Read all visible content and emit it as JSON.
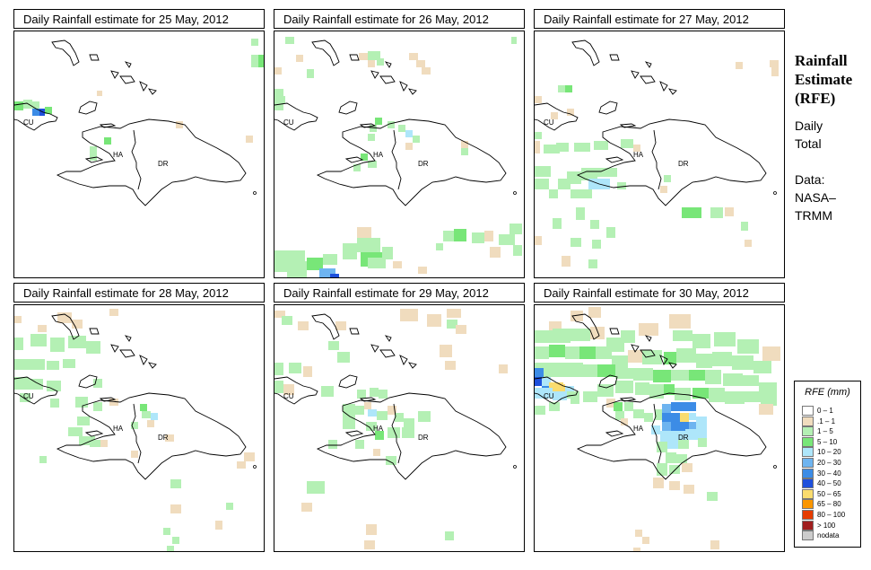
{
  "panels": [
    {
      "title": "Daily Rainfall estimate for  25 May, 2012",
      "labels": {
        "cu": "CU",
        "ha": "HA",
        "dr": "DR"
      }
    },
    {
      "title": "Daily Rainfall estimate for  26 May, 2012",
      "labels": {
        "cu": "CU",
        "ha": "HA",
        "dr": "DR"
      }
    },
    {
      "title": "Daily Rainfall estimate for  27 May, 2012",
      "labels": {
        "cu": "CU",
        "ha": "HA",
        "dr": "DR"
      }
    },
    {
      "title": "Daily Rainfall estimate for  28 May, 2012",
      "labels": {
        "cu": "CU",
        "ha": "HA",
        "dr": "DR"
      }
    },
    {
      "title": "Daily Rainfall estimate for  29 May, 2012",
      "labels": {
        "cu": "CU",
        "ha": "HA",
        "dr": "DR"
      }
    },
    {
      "title": "Daily Rainfall estimate for  30 May, 2012",
      "labels": {
        "cu": "CU",
        "ha": "HA",
        "dr": "DR"
      }
    }
  ],
  "side": {
    "title_lines": [
      "Rainfall",
      "Estimate",
      "(RFE)"
    ],
    "daily_lines": [
      "Daily",
      "Total"
    ],
    "data_lines": [
      "Data:",
      "NASA–",
      "TRMM"
    ]
  },
  "legend": {
    "title": "RFE (mm)",
    "items": [
      {
        "label": "0 – 1",
        "color": "#ffffff"
      },
      {
        "label": ".1 – 1",
        "color": "#f0dcbe"
      },
      {
        "label": "1 – 5",
        "color": "#b4f0b4"
      },
      {
        "label": "5 – 10",
        "color": "#78e678"
      },
      {
        "label": "10 – 20",
        "color": "#aee6fa"
      },
      {
        "label": "20 – 30",
        "color": "#6eb4f0"
      },
      {
        "label": "30 – 40",
        "color": "#3c8ce6"
      },
      {
        "label": "40 – 50",
        "color": "#1e50dc"
      },
      {
        "label": "50 – 65",
        "color": "#fadc6e"
      },
      {
        "label": "65 – 80",
        "color": "#fa9600"
      },
      {
        "label": "80 – 100",
        "color": "#e63c00"
      },
      {
        "label": "> 100",
        "color": "#a01e1e"
      },
      {
        "label": "nodata",
        "color": "#cccccc"
      }
    ]
  }
}
